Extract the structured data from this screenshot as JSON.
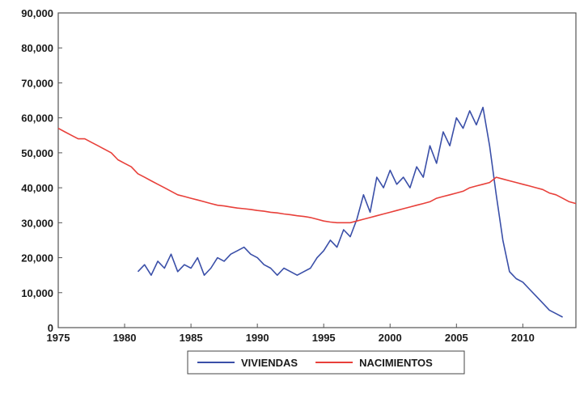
{
  "chart_data": {
    "type": "line",
    "title": "",
    "xlabel": "",
    "ylabel": "",
    "xlim": [
      1975,
      2014
    ],
    "ylim": [
      0,
      90000
    ],
    "x_ticks": [
      "1975",
      "1980",
      "1985",
      "1990",
      "1995",
      "2000",
      "2005",
      "2010"
    ],
    "y_ticks": [
      "0",
      "10,000",
      "20,000",
      "30,000",
      "40,000",
      "50,000",
      "60,000",
      "70,000",
      "80,000",
      "90,000"
    ],
    "grid": false,
    "legend_position": "bottom-center",
    "series": [
      {
        "name": "VIVIENDAS",
        "color": "#3a4fa8",
        "x": [
          1981.0,
          1981.5,
          1982.0,
          1982.5,
          1983.0,
          1983.5,
          1984.0,
          1984.5,
          1985.0,
          1985.5,
          1986.0,
          1986.5,
          1987.0,
          1987.5,
          1988.0,
          1988.5,
          1989.0,
          1989.5,
          1990.0,
          1990.5,
          1991.0,
          1991.5,
          1992.0,
          1992.5,
          1993.0,
          1993.5,
          1994.0,
          1994.5,
          1995.0,
          1995.5,
          1996.0,
          1996.5,
          1997.0,
          1997.5,
          1998.0,
          1998.5,
          1999.0,
          1999.5,
          2000.0,
          2000.5,
          2001.0,
          2001.5,
          2002.0,
          2002.5,
          2003.0,
          2003.5,
          2004.0,
          2004.5,
          2005.0,
          2005.5,
          2006.0,
          2006.5,
          2007.0,
          2007.5,
          2008.0,
          2008.5,
          2009.0,
          2009.5,
          2010.0,
          2010.5,
          2011.0,
          2011.5,
          2012.0,
          2012.5,
          2013.0
        ],
        "y": [
          16000,
          18000,
          15000,
          19000,
          17000,
          21000,
          16000,
          18000,
          17000,
          20000,
          15000,
          17000,
          20000,
          19000,
          21000,
          22000,
          23000,
          21000,
          20000,
          18000,
          17000,
          15000,
          17000,
          16000,
          15000,
          16000,
          17000,
          20000,
          22000,
          25000,
          23000,
          28000,
          26000,
          31000,
          38000,
          33000,
          43000,
          40000,
          45000,
          41000,
          43000,
          40000,
          46000,
          43000,
          52000,
          47000,
          56000,
          52000,
          60000,
          57000,
          62000,
          58000,
          63000,
          52000,
          38000,
          25000,
          16000,
          14000,
          13000,
          11000,
          9000,
          7000,
          5000,
          4000,
          3000
        ]
      },
      {
        "name": "NACIMIENTOS",
        "color": "#e8403a",
        "x": [
          1975.0,
          1975.5,
          1976.0,
          1976.5,
          1977.0,
          1977.5,
          1978.0,
          1978.5,
          1979.0,
          1979.5,
          1980.0,
          1980.5,
          1981.0,
          1981.5,
          1982.0,
          1982.5,
          1983.0,
          1983.5,
          1984.0,
          1984.5,
          1985.0,
          1985.5,
          1986.0,
          1986.5,
          1987.0,
          1987.5,
          1988.0,
          1988.5,
          1989.0,
          1989.5,
          1990.0,
          1990.5,
          1991.0,
          1991.5,
          1992.0,
          1992.5,
          1993.0,
          1993.5,
          1994.0,
          1994.5,
          1995.0,
          1995.5,
          1996.0,
          1996.5,
          1997.0,
          1997.5,
          1998.0,
          1998.5,
          1999.0,
          1999.5,
          2000.0,
          2000.5,
          2001.0,
          2001.5,
          2002.0,
          2002.5,
          2003.0,
          2003.5,
          2004.0,
          2004.5,
          2005.0,
          2005.5,
          2006.0,
          2006.5,
          2007.0,
          2007.5,
          2008.0,
          2008.5,
          2009.0,
          2009.5,
          2010.0,
          2010.5,
          2011.0,
          2011.5,
          2012.0,
          2012.5,
          2013.0,
          2013.5,
          2014.0
        ],
        "y": [
          57000,
          56000,
          55000,
          54000,
          54000,
          53000,
          52000,
          51000,
          50000,
          48000,
          47000,
          46000,
          44000,
          43000,
          42000,
          41000,
          40000,
          39000,
          38000,
          37500,
          37000,
          36500,
          36000,
          35500,
          35000,
          34800,
          34500,
          34200,
          34000,
          33800,
          33500,
          33300,
          33000,
          32800,
          32500,
          32300,
          32000,
          31800,
          31500,
          31000,
          30500,
          30200,
          30000,
          30000,
          30000,
          30500,
          31000,
          31500,
          32000,
          32500,
          33000,
          33500,
          34000,
          34500,
          35000,
          35500,
          36000,
          37000,
          37500,
          38000,
          38500,
          39000,
          40000,
          40500,
          41000,
          41500,
          43000,
          42500,
          42000,
          41500,
          41000,
          40500,
          40000,
          39500,
          38500,
          38000,
          37000,
          36000,
          35500
        ]
      }
    ]
  }
}
